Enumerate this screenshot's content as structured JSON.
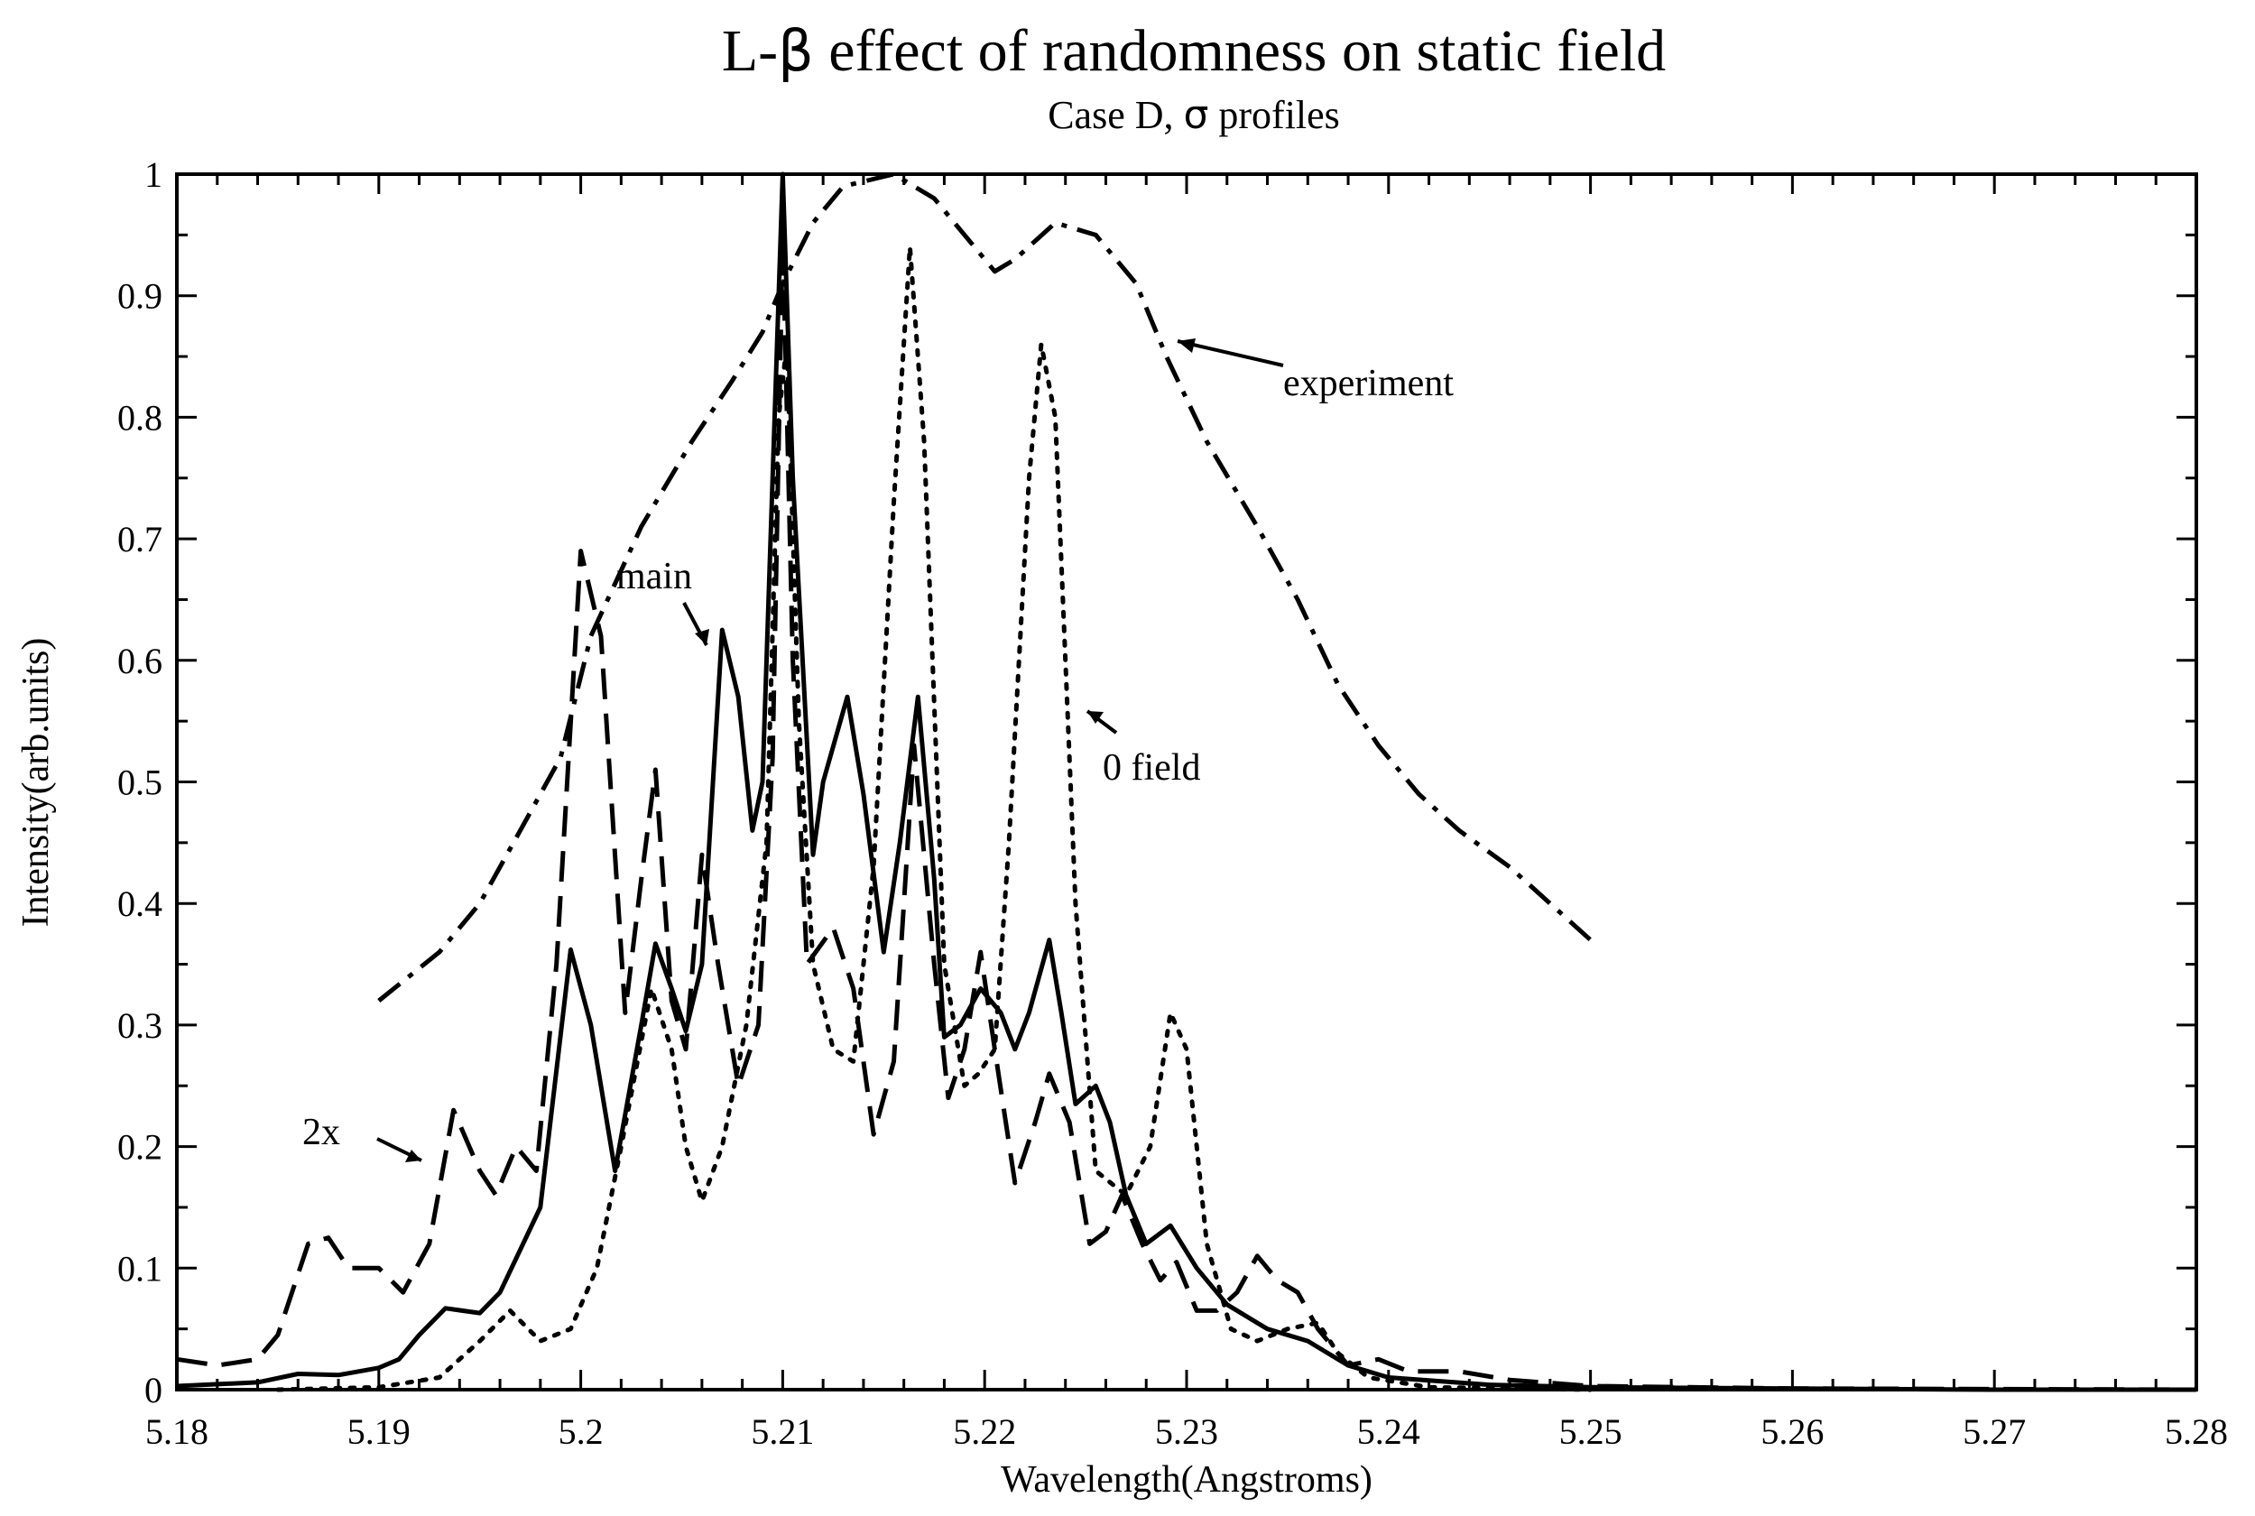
{
  "chart_data": {
    "type": "line",
    "title_prefix": "L-",
    "title_symbol": "β",
    "title_suffix": " effect of randomness on static field",
    "subtitle_prefix": "Case D, ",
    "subtitle_symbol": "σ",
    "subtitle_suffix": " profiles",
    "xlabel": "Wavelength(Angstroms)",
    "ylabel": "Intensity(arb.units)",
    "xlim": [
      5.18,
      5.28
    ],
    "ylim": [
      0,
      1
    ],
    "x_ticks": [
      "5.18",
      "5.19",
      "5.2",
      "5.21",
      "5.22",
      "5.23",
      "5.24",
      "5.25",
      "5.26",
      "5.27",
      "5.28"
    ],
    "y_ticks": [
      "0",
      "0.1",
      "0.2",
      "0.3",
      "0.4",
      "0.5",
      "0.6",
      "0.7",
      "0.8",
      "0.9",
      "1"
    ],
    "series": [
      {
        "name": "main",
        "style": "solid",
        "points": [
          [
            5.18,
            0.003
          ],
          [
            5.184,
            0.006
          ],
          [
            5.186,
            0.013
          ],
          [
            5.188,
            0.012
          ],
          [
            5.19,
            0.018
          ],
          [
            5.191,
            0.025
          ],
          [
            5.192,
            0.045
          ],
          [
            5.1933,
            0.067
          ],
          [
            5.195,
            0.063
          ],
          [
            5.196,
            0.08
          ],
          [
            5.197,
            0.115
          ],
          [
            5.198,
            0.15
          ],
          [
            5.1995,
            0.362
          ],
          [
            5.2005,
            0.3
          ],
          [
            5.2017,
            0.18
          ],
          [
            5.203,
            0.3
          ],
          [
            5.2037,
            0.367
          ],
          [
            5.2045,
            0.33
          ],
          [
            5.2052,
            0.295
          ],
          [
            5.206,
            0.35
          ],
          [
            5.207,
            0.625
          ],
          [
            5.2078,
            0.57
          ],
          [
            5.2085,
            0.46
          ],
          [
            5.209,
            0.5
          ],
          [
            5.2095,
            0.75
          ],
          [
            5.21,
            1.0
          ],
          [
            5.2105,
            0.75
          ],
          [
            5.2115,
            0.44
          ],
          [
            5.212,
            0.5
          ],
          [
            5.2132,
            0.57
          ],
          [
            5.214,
            0.49
          ],
          [
            5.215,
            0.36
          ],
          [
            5.2158,
            0.45
          ],
          [
            5.2167,
            0.57
          ],
          [
            5.2175,
            0.42
          ],
          [
            5.218,
            0.29
          ],
          [
            5.2188,
            0.3
          ],
          [
            5.2198,
            0.33
          ],
          [
            5.2208,
            0.31
          ],
          [
            5.2215,
            0.28
          ],
          [
            5.2222,
            0.31
          ],
          [
            5.2232,
            0.37
          ],
          [
            5.2238,
            0.31
          ],
          [
            5.2245,
            0.235
          ],
          [
            5.2255,
            0.25
          ],
          [
            5.2262,
            0.22
          ],
          [
            5.227,
            0.16
          ],
          [
            5.228,
            0.12
          ],
          [
            5.2292,
            0.135
          ],
          [
            5.2305,
            0.1
          ],
          [
            5.232,
            0.07
          ],
          [
            5.234,
            0.05
          ],
          [
            5.236,
            0.04
          ],
          [
            5.238,
            0.02
          ],
          [
            5.24,
            0.01
          ],
          [
            5.245,
            0.004
          ],
          [
            5.25,
            0.002
          ],
          [
            5.26,
            0.001
          ],
          [
            5.27,
            0.0
          ],
          [
            5.28,
            0.0
          ]
        ]
      },
      {
        "name": "2x",
        "style": "dashed",
        "points": [
          [
            5.18,
            0.025
          ],
          [
            5.182,
            0.02
          ],
          [
            5.184,
            0.025
          ],
          [
            5.185,
            0.045
          ],
          [
            5.1865,
            0.12
          ],
          [
            5.1875,
            0.125
          ],
          [
            5.1885,
            0.1
          ],
          [
            5.19,
            0.1
          ],
          [
            5.1912,
            0.08
          ],
          [
            5.1925,
            0.12
          ],
          [
            5.1937,
            0.23
          ],
          [
            5.195,
            0.18
          ],
          [
            5.1958,
            0.16
          ],
          [
            5.1968,
            0.2
          ],
          [
            5.1978,
            0.18
          ],
          [
            5.1988,
            0.35
          ],
          [
            5.2,
            0.69
          ],
          [
            5.201,
            0.62
          ],
          [
            5.2022,
            0.31
          ],
          [
            5.203,
            0.42
          ],
          [
            5.2037,
            0.51
          ],
          [
            5.2045,
            0.32
          ],
          [
            5.2052,
            0.28
          ],
          [
            5.206,
            0.44
          ],
          [
            5.2068,
            0.35
          ],
          [
            5.2078,
            0.25
          ],
          [
            5.2088,
            0.3
          ],
          [
            5.2095,
            0.52
          ],
          [
            5.21,
            0.95
          ],
          [
            5.2105,
            0.6
          ],
          [
            5.2112,
            0.35
          ],
          [
            5.2125,
            0.38
          ],
          [
            5.2135,
            0.33
          ],
          [
            5.2145,
            0.21
          ],
          [
            5.2155,
            0.27
          ],
          [
            5.2165,
            0.53
          ],
          [
            5.2175,
            0.35
          ],
          [
            5.2182,
            0.24
          ],
          [
            5.219,
            0.28
          ],
          [
            5.2198,
            0.36
          ],
          [
            5.2205,
            0.28
          ],
          [
            5.2215,
            0.17
          ],
          [
            5.2225,
            0.22
          ],
          [
            5.2232,
            0.26
          ],
          [
            5.2242,
            0.22
          ],
          [
            5.2252,
            0.12
          ],
          [
            5.226,
            0.13
          ],
          [
            5.2268,
            0.16
          ],
          [
            5.2278,
            0.12
          ],
          [
            5.2287,
            0.09
          ],
          [
            5.2295,
            0.105
          ],
          [
            5.2305,
            0.065
          ],
          [
            5.2315,
            0.065
          ],
          [
            5.2325,
            0.08
          ],
          [
            5.2335,
            0.11
          ],
          [
            5.2345,
            0.09
          ],
          [
            5.2355,
            0.08
          ],
          [
            5.2365,
            0.05
          ],
          [
            5.238,
            0.02
          ],
          [
            5.2395,
            0.025
          ],
          [
            5.241,
            0.015
          ],
          [
            5.2435,
            0.015
          ],
          [
            5.246,
            0.008
          ],
          [
            5.25,
            0.003
          ],
          [
            5.26,
            0.001
          ],
          [
            5.28,
            0.0
          ]
        ]
      },
      {
        "name": "0 field",
        "style": "dotted",
        "points": [
          [
            5.185,
            0.0
          ],
          [
            5.19,
            0.002
          ],
          [
            5.193,
            0.01
          ],
          [
            5.195,
            0.04
          ],
          [
            5.1965,
            0.065
          ],
          [
            5.198,
            0.04
          ],
          [
            5.1995,
            0.05
          ],
          [
            5.2008,
            0.1
          ],
          [
            5.202,
            0.2
          ],
          [
            5.2035,
            0.33
          ],
          [
            5.2045,
            0.28
          ],
          [
            5.2052,
            0.2
          ],
          [
            5.206,
            0.155
          ],
          [
            5.207,
            0.2
          ],
          [
            5.2082,
            0.3
          ],
          [
            5.2092,
            0.45
          ],
          [
            5.2098,
            0.8
          ],
          [
            5.2102,
            0.86
          ],
          [
            5.2108,
            0.55
          ],
          [
            5.2115,
            0.35
          ],
          [
            5.2125,
            0.28
          ],
          [
            5.2135,
            0.27
          ],
          [
            5.2145,
            0.43
          ],
          [
            5.2155,
            0.73
          ],
          [
            5.2163,
            0.94
          ],
          [
            5.217,
            0.78
          ],
          [
            5.218,
            0.35
          ],
          [
            5.219,
            0.25
          ],
          [
            5.2197,
            0.26
          ],
          [
            5.2205,
            0.28
          ],
          [
            5.2212,
            0.45
          ],
          [
            5.2222,
            0.75
          ],
          [
            5.2228,
            0.86
          ],
          [
            5.2235,
            0.8
          ],
          [
            5.2245,
            0.4
          ],
          [
            5.2255,
            0.18
          ],
          [
            5.227,
            0.16
          ],
          [
            5.2282,
            0.2
          ],
          [
            5.2292,
            0.31
          ],
          [
            5.23,
            0.28
          ],
          [
            5.231,
            0.12
          ],
          [
            5.2322,
            0.05
          ],
          [
            5.2335,
            0.04
          ],
          [
            5.235,
            0.05
          ],
          [
            5.2365,
            0.055
          ],
          [
            5.2375,
            0.03
          ],
          [
            5.239,
            0.01
          ],
          [
            5.242,
            0.002
          ],
          [
            5.25,
            0.0
          ]
        ]
      },
      {
        "name": "experiment",
        "style": "dashdot",
        "points": [
          [
            5.19,
            0.32
          ],
          [
            5.1915,
            0.34
          ],
          [
            5.193,
            0.36
          ],
          [
            5.195,
            0.4
          ],
          [
            5.197,
            0.46
          ],
          [
            5.199,
            0.52
          ],
          [
            5.2005,
            0.62
          ],
          [
            5.203,
            0.71
          ],
          [
            5.2055,
            0.78
          ],
          [
            5.2075,
            0.83
          ],
          [
            5.209,
            0.87
          ],
          [
            5.21,
            0.91
          ],
          [
            5.2115,
            0.96
          ],
          [
            5.213,
            0.99
          ],
          [
            5.2155,
            1.0
          ],
          [
            5.2175,
            0.98
          ],
          [
            5.2195,
            0.94
          ],
          [
            5.2205,
            0.92
          ],
          [
            5.2215,
            0.93
          ],
          [
            5.2235,
            0.96
          ],
          [
            5.2255,
            0.95
          ],
          [
            5.2275,
            0.91
          ],
          [
            5.229,
            0.85
          ],
          [
            5.231,
            0.78
          ],
          [
            5.2335,
            0.71
          ],
          [
            5.2355,
            0.65
          ],
          [
            5.2375,
            0.58
          ],
          [
            5.2395,
            0.53
          ],
          [
            5.2415,
            0.49
          ],
          [
            5.2435,
            0.46
          ],
          [
            5.246,
            0.43
          ],
          [
            5.248,
            0.4
          ],
          [
            5.25,
            0.37
          ]
        ]
      }
    ]
  },
  "annotations": {
    "main": "main",
    "two_x": "2x",
    "zero_field": "0 field",
    "experiment": "experiment"
  }
}
